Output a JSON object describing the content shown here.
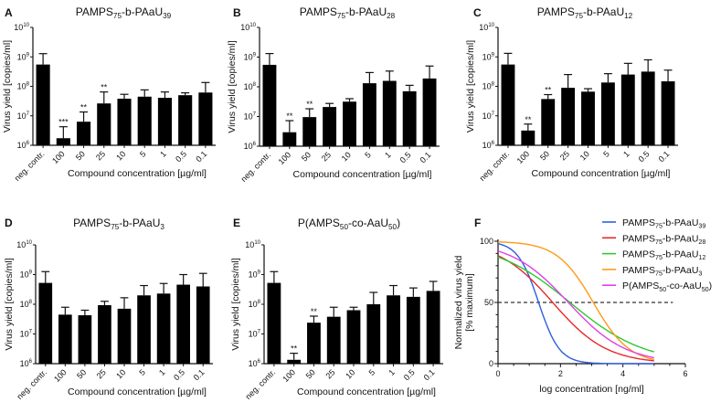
{
  "chart_data": [
    {
      "panel": "A",
      "type": "bar",
      "title": [
        {
          "t": "PAMPS"
        },
        {
          "t": "75",
          "sub": true
        },
        {
          "t": "-b-PAaU"
        },
        {
          "t": "39",
          "sub": true
        }
      ],
      "xlabel": "Compound concentration [µg/ml]",
      "ylabel": "Virus yield [copies/ml]",
      "yscale": "log",
      "ylim_exp": [
        6,
        10
      ],
      "yticks_exp": [
        6,
        7,
        8,
        9,
        10
      ],
      "categories": [
        "neg. contr.",
        "100",
        "50",
        "25",
        "10",
        "5",
        "1",
        "0.5",
        "0.1"
      ],
      "log10_values": [
        8.74,
        6.24,
        6.8,
        7.42,
        7.58,
        7.65,
        7.61,
        7.7,
        7.79
      ],
      "log10_error_top": [
        9.11,
        6.63,
        7.13,
        7.81,
        7.73,
        7.88,
        7.81,
        7.78,
        8.13
      ],
      "significance": [
        "",
        "***",
        "**",
        "**",
        "",
        "",
        "",
        "",
        ""
      ]
    },
    {
      "panel": "B",
      "type": "bar",
      "title": [
        {
          "t": "PAMPS"
        },
        {
          "t": "75",
          "sub": true
        },
        {
          "t": "-b-PAaU"
        },
        {
          "t": "28",
          "sub": true
        }
      ],
      "xlabel": "Compound concentration [µg/ml]",
      "ylabel": "Virus yield [copies/ml]",
      "yscale": "log",
      "ylim_exp": [
        6,
        10
      ],
      "yticks_exp": [
        6,
        7,
        8,
        9,
        10
      ],
      "categories": [
        "neg. contr.",
        "100",
        "50",
        "25",
        "10",
        "5",
        "1",
        "0.5",
        "0.1"
      ],
      "log10_values": [
        8.74,
        6.47,
        6.98,
        7.32,
        7.5,
        8.12,
        8.2,
        7.85,
        8.28
      ],
      "log10_error_top": [
        9.12,
        6.86,
        7.26,
        7.44,
        7.6,
        8.48,
        8.53,
        8.05,
        8.7
      ],
      "significance": [
        "",
        "**",
        "**",
        "",
        "",
        "",
        "",
        "",
        ""
      ]
    },
    {
      "panel": "C",
      "type": "bar",
      "title": [
        {
          "t": "PAMPS"
        },
        {
          "t": "75",
          "sub": true
        },
        {
          "t": "-b-PAaU"
        },
        {
          "t": "12",
          "sub": true
        }
      ],
      "xlabel": "Compound concentration [µg/ml]",
      "ylabel": "Virus yield [copies/ml]",
      "yscale": "log",
      "ylim_exp": [
        6,
        10
      ],
      "yticks_exp": [
        6,
        7,
        8,
        9,
        10
      ],
      "categories": [
        "neg. contr.",
        "100",
        "50",
        "25",
        "10",
        "5",
        "1",
        "0.5",
        "0.1"
      ],
      "log10_values": [
        8.74,
        6.5,
        7.57,
        7.95,
        7.82,
        8.13,
        8.4,
        8.5,
        8.17
      ],
      "log10_error_top": [
        9.12,
        6.72,
        7.72,
        8.4,
        7.92,
        8.43,
        8.78,
        8.9,
        8.55
      ],
      "significance": [
        "",
        "**",
        "**",
        "",
        "",
        "",
        "",
        "",
        ""
      ]
    },
    {
      "panel": "D",
      "type": "bar",
      "title": [
        {
          "t": "PAMPS"
        },
        {
          "t": "75",
          "sub": true
        },
        {
          "t": "-b-PAaU"
        },
        {
          "t": "3",
          "sub": true
        }
      ],
      "xlabel": "Compound concentration [µg/ml]",
      "ylabel": "Virus yield [copies/ml]",
      "yscale": "log",
      "ylim_exp": [
        6,
        10
      ],
      "yticks_exp": [
        6,
        7,
        8,
        9,
        10
      ],
      "categories": [
        "neg. contr.",
        "100",
        "50",
        "25",
        "10",
        "5",
        "1",
        "0.5",
        "0.1"
      ],
      "log10_values": [
        8.72,
        7.65,
        7.63,
        7.97,
        7.85,
        8.3,
        8.36,
        8.66,
        8.6
      ],
      "log10_error_top": [
        9.1,
        7.9,
        7.8,
        8.1,
        8.22,
        8.63,
        8.7,
        9.0,
        9.04
      ],
      "significance": [
        "",
        "",
        "",
        "",
        "",
        "",
        "",
        "",
        ""
      ]
    },
    {
      "panel": "E",
      "type": "bar",
      "title": [
        {
          "t": "P(AMPS"
        },
        {
          "t": "50",
          "sub": true
        },
        {
          "t": "-co-AaU"
        },
        {
          "t": "50",
          "sub": true
        },
        {
          "t": ")"
        }
      ],
      "xlabel": "Compound concentration [µg/ml]",
      "ylabel": "Virus yield [copies/ml]",
      "yscale": "log",
      "ylim_exp": [
        6,
        10
      ],
      "yticks_exp": [
        6,
        7,
        8,
        9,
        10
      ],
      "categories": [
        "neg. contr.",
        "100",
        "50",
        "25",
        "10",
        "5",
        "1",
        "0.5",
        "0.1"
      ],
      "log10_values": [
        8.72,
        6.13,
        7.38,
        7.58,
        7.8,
        8.0,
        8.3,
        8.25,
        8.45
      ],
      "log10_error_top": [
        9.1,
        6.35,
        7.6,
        7.9,
        7.9,
        8.4,
        8.63,
        8.55,
        8.77
      ],
      "significance": [
        "",
        "**",
        "**",
        "",
        "",
        "",
        "",
        "",
        ""
      ]
    },
    {
      "panel": "F",
      "type": "line",
      "xlabel": "log concentration [ng/ml]",
      "ylabel": [
        "Normalized virus yield",
        "[% maximum]"
      ],
      "xlim": [
        0,
        6
      ],
      "ylim": [
        0,
        100
      ],
      "xticks": [
        0,
        2,
        4,
        6
      ],
      "yticks": [
        0,
        50,
        100
      ],
      "reference_line": {
        "y": 50,
        "style": "dashed"
      },
      "legend_position": "top-right",
      "series": [
        {
          "name": [
            {
              "t": "PAMPS"
            },
            {
              "t": "75",
              "sub": true
            },
            {
              "t": "-b-PAaU"
            },
            {
              "t": "39",
              "sub": true
            }
          ],
          "color": "#2f5fe0",
          "top": 100,
          "bottom": 0,
          "log_ic50": 1.3,
          "hill": 1.3,
          "x_range": [
            0,
            5
          ]
        },
        {
          "name": [
            {
              "t": "PAMPS"
            },
            {
              "t": "75",
              "sub": true
            },
            {
              "t": "-b-PAaU"
            },
            {
              "t": "28",
              "sub": true
            }
          ],
          "color": "#e8262a",
          "top": 100,
          "bottom": 0,
          "log_ic50": 1.75,
          "hill": 0.5,
          "x_range": [
            0,
            5
          ]
        },
        {
          "name": [
            {
              "t": "PAMPS"
            },
            {
              "t": "75",
              "sub": true
            },
            {
              "t": "-b-PAaU"
            },
            {
              "t": "12",
              "sub": true
            }
          ],
          "color": "#2ec82e",
          "top": 100,
          "bottom": 0,
          "log_ic50": 2.3,
          "hill": 0.36,
          "x_range": [
            0,
            5
          ]
        },
        {
          "name": [
            {
              "t": "PAMPS"
            },
            {
              "t": "75",
              "sub": true
            },
            {
              "t": "-b-PAaU"
            },
            {
              "t": "3",
              "sub": true
            }
          ],
          "color": "#ff9a1a",
          "top": 100,
          "bottom": 0,
          "log_ic50": 3.05,
          "hill": 0.75,
          "x_range": [
            0,
            5
          ]
        },
        {
          "name": [
            {
              "t": "P(AMPS"
            },
            {
              "t": "50",
              "sub": true
            },
            {
              "t": "-co-AaU"
            },
            {
              "t": "50",
              "sub": true
            },
            {
              "t": ")"
            }
          ],
          "color": "#e040e8",
          "top": 100,
          "bottom": 0,
          "log_ic50": 2.25,
          "hill": 0.47,
          "x_range": [
            0,
            5
          ]
        }
      ]
    }
  ]
}
